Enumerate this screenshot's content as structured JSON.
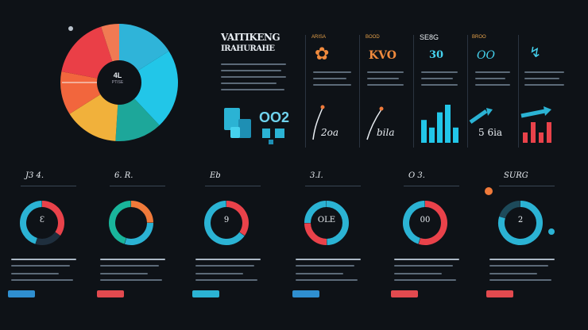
{
  "header": {
    "title_line1": "VAITIKENG",
    "title_line2": "IRAHURAHE",
    "pie_center_label": "4L",
    "pie_center_sub": "PTISE"
  },
  "columns": [
    {
      "label": "ARISA",
      "figure": "✿"
    },
    {
      "label": "BOOD",
      "figure": "KVO"
    },
    {
      "label": "SE8G",
      "figure": "30"
    },
    {
      "label": "BROO",
      "figure": "OO"
    },
    {
      "label": "",
      "figure": "↯"
    }
  ],
  "bottom_row": {
    "big_number": "OO2",
    "texts": [
      "2oa",
      "bila",
      "",
      "5 6ia",
      ""
    ]
  },
  "widgets": [
    {
      "title": "J3 4.",
      "center": "Ɛ"
    },
    {
      "title": "6. R.",
      "center": ""
    },
    {
      "title": "Eb",
      "center": "9"
    },
    {
      "title": "3.I.",
      "center": "OLE"
    },
    {
      "title": "O 3.",
      "center": "00"
    },
    {
      "title": "SURG",
      "center": "2"
    }
  ],
  "chart_data": {
    "type": "pie",
    "title": "",
    "slices": [
      {
        "value": 0.16,
        "color": "#2fb4d9"
      },
      {
        "value": 0.22,
        "color": "#22c6e8"
      },
      {
        "value": 0.13,
        "color": "#1da79a"
      },
      {
        "value": 0.15,
        "color": "#f1b13b"
      },
      {
        "value": 0.12,
        "color": "#f2663d"
      },
      {
        "value": 0.17,
        "color": "#ea3f47"
      },
      {
        "value": 0.05,
        "color": "#f07a53"
      }
    ],
    "donuts": [
      {
        "segments": [
          {
            "value": 0.35,
            "color": "#e9424a"
          },
          {
            "value": 0.2,
            "color": "#1f2f3e"
          },
          {
            "value": 0.45,
            "color": "#2bb3d4"
          }
        ]
      },
      {
        "segments": [
          {
            "value": 0.25,
            "color": "#f07a3a"
          },
          {
            "value": 0.3,
            "color": "#2bb3d4"
          },
          {
            "value": 0.45,
            "color": "#19b59b"
          }
        ]
      },
      {
        "segments": [
          {
            "value": 0.35,
            "color": "#e9424a"
          },
          {
            "value": 0.65,
            "color": "#2bb3d4"
          }
        ]
      },
      {
        "segments": [
          {
            "value": 0.5,
            "color": "#2bb3d4"
          },
          {
            "value": 0.25,
            "color": "#e9424a"
          },
          {
            "value": 0.25,
            "color": "#2bb3d4"
          }
        ]
      },
      {
        "segments": [
          {
            "value": 0.55,
            "color": "#e9424a"
          },
          {
            "value": 0.45,
            "color": "#2bb3d4"
          }
        ]
      },
      {
        "segments": [
          {
            "value": 0.8,
            "color": "#2bb3d4"
          },
          {
            "value": 0.2,
            "color": "#1d4a5a"
          }
        ]
      }
    ],
    "bars": [
      {
        "values": [
          3,
          2,
          4,
          5,
          2
        ],
        "color": "#22c6e8"
      },
      {
        "values": [
          1,
          2,
          1,
          2
        ],
        "color": "#e9424a"
      }
    ]
  },
  "colors": {
    "background": "#0e1217",
    "cyan": "#2bb3d4",
    "red": "#e9424a",
    "orange": "#f07a3a",
    "button_blue": "#2f8fd0",
    "button_red": "#e24a4f"
  }
}
